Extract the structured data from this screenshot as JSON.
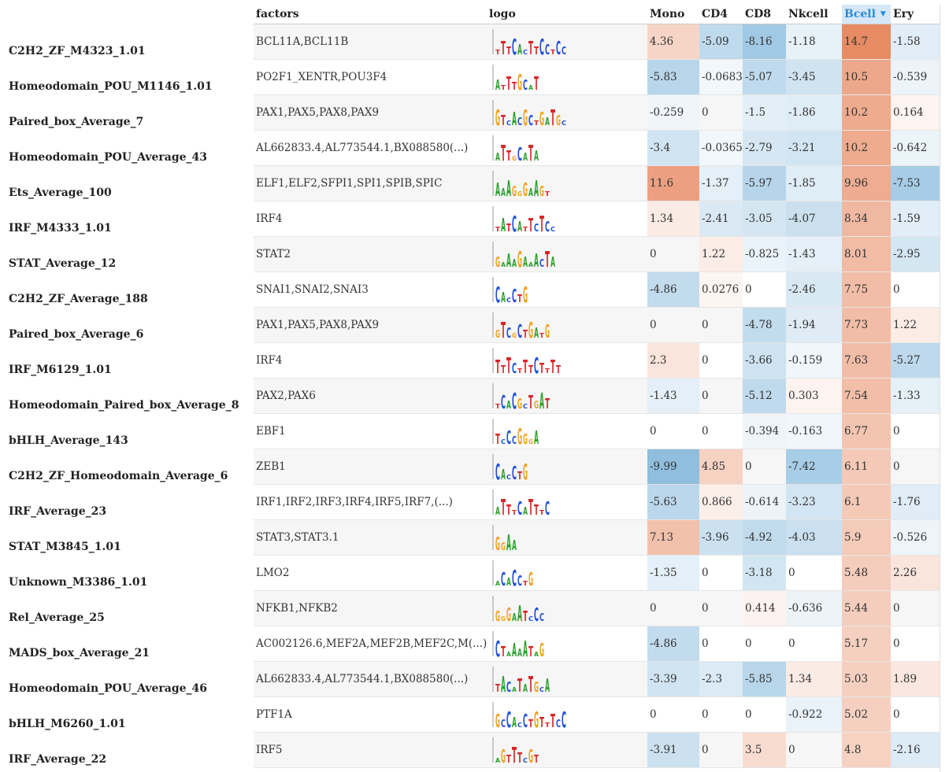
{
  "columns": {
    "factors": "factors",
    "logo": "logo",
    "mono": "Mono",
    "cd4": "CD4",
    "cd8": "CD8",
    "nkcell": "Nkcell",
    "bcell": "Bcell",
    "ery": "Ery"
  },
  "sort": {
    "column": "bcell",
    "direction": "descending",
    "indicator_icon": "sort-desc-arrow-icon"
  },
  "colors": {
    "positive": "#e6855c",
    "negative": "#5a9fcf",
    "sorted_header_bg": "#d6e8f7",
    "sorted_header_text": "#2b8cd6"
  },
  "rows": [
    {
      "name": "C2H2_ZF_M4323_1.01",
      "factors": "BCL11A,BCL11B",
      "logo": [
        "T",
        "T",
        "T",
        "C",
        "A",
        "C",
        "T",
        "T",
        "C",
        "C",
        "T",
        "C",
        "C"
      ],
      "values": [
        "4.36",
        "-5.09",
        "-8.16",
        "-1.18",
        "14.7",
        "-1.58"
      ]
    },
    {
      "name": "Homeodomain_POU_M1146_1.01",
      "factors": "PO2F1_XENTR,POU3F4",
      "logo": [
        "A",
        "T",
        "T",
        "T",
        "G",
        "C",
        "A",
        "T"
      ],
      "values": [
        "-5.83",
        "-0.0683",
        "-5.07",
        "-3.45",
        "10.5",
        "-0.539"
      ]
    },
    {
      "name": "Paired_box_Average_7",
      "factors": "PAX1,PAX5,PAX8,PAX9",
      "logo": [
        "G",
        "T",
        "C",
        "A",
        "C",
        "G",
        "C",
        "T",
        "G",
        "A",
        "T",
        "G",
        "C"
      ],
      "values": [
        "-0.259",
        "0",
        "-1.5",
        "-1.86",
        "10.2",
        "0.164"
      ]
    },
    {
      "name": "Homeodomain_POU_Average_43",
      "factors": "AL662833.4,AL773544.1,BX088580(...)",
      "logo": [
        "A",
        "T",
        "T",
        "G",
        "C",
        "A",
        "T",
        "A"
      ],
      "values": [
        "-3.4",
        "-0.0365",
        "-2.79",
        "-3.21",
        "10.2",
        "-0.642"
      ]
    },
    {
      "name": "Ets_Average_100",
      "factors": "ELF1,ELF2,SFPI1,SPI1,SPIB,SPIC",
      "logo": [
        "A",
        "A",
        "A",
        "G",
        "G",
        "G",
        "A",
        "A",
        "G",
        "T"
      ],
      "values": [
        "11.6",
        "-1.37",
        "-5.97",
        "-1.85",
        "9.96",
        "-7.53"
      ]
    },
    {
      "name": "IRF_M4333_1.01",
      "factors": "IRF4",
      "logo": [
        "T",
        "A",
        "T",
        "C",
        "A",
        "T",
        "T",
        "C",
        "T",
        "C",
        "C"
      ],
      "values": [
        "1.34",
        "-2.41",
        "-3.05",
        "-4.07",
        "8.34",
        "-1.59"
      ]
    },
    {
      "name": "STAT_Average_12",
      "factors": "STAT2",
      "logo": [
        "G",
        "A",
        "A",
        "A",
        "G",
        "A",
        "A",
        "A",
        "C",
        "T",
        "A"
      ],
      "values": [
        "0",
        "1.22",
        "-0.825",
        "-1.43",
        "8.01",
        "-2.95"
      ]
    },
    {
      "name": "C2H2_ZF_Average_188",
      "factors": "SNAI1,SNAI2,SNAI3",
      "logo": [
        "C",
        "A",
        "C",
        "C",
        "T",
        "G"
      ],
      "values": [
        "-4.86",
        "0.0276",
        "0",
        "-2.46",
        "7.75",
        "0"
      ]
    },
    {
      "name": "Paired_box_Average_6",
      "factors": "PAX1,PAX5,PAX8,PAX9",
      "logo": [
        "G",
        "T",
        "C",
        "G",
        "C",
        "T",
        "G",
        "A",
        "T",
        "G"
      ],
      "values": [
        "0",
        "0",
        "-4.78",
        "-1.94",
        "7.73",
        "1.22"
      ]
    },
    {
      "name": "IRF_M6129_1.01",
      "factors": "IRF4",
      "logo": [
        "T",
        "T",
        "T",
        "C",
        "T",
        "T",
        "T",
        "C",
        "T",
        "T",
        "T",
        "T"
      ],
      "values": [
        "2.3",
        "0",
        "-3.66",
        "-0.159",
        "7.63",
        "-5.27"
      ]
    },
    {
      "name": "Homeodomain_Paired_box_Average_8",
      "factors": "PAX2,PAX6",
      "logo": [
        "T",
        "C",
        "A",
        "C",
        "G",
        "C",
        "T",
        "G",
        "A",
        "T"
      ],
      "values": [
        "-1.43",
        "0",
        "-5.12",
        "0.303",
        "7.54",
        "-1.33"
      ]
    },
    {
      "name": "bHLH_Average_143",
      "factors": "EBF1",
      "logo": [
        "T",
        "C",
        "C",
        "C",
        "G",
        "G",
        "G",
        "A"
      ],
      "values": [
        "0",
        "0",
        "-0.394",
        "-0.163",
        "6.77",
        "0"
      ]
    },
    {
      "name": "C2H2_ZF_Homeodomain_Average_6",
      "factors": "ZEB1",
      "logo": [
        "C",
        "A",
        "C",
        "C",
        "T",
        "G"
      ],
      "values": [
        "-9.99",
        "4.85",
        "0",
        "-7.42",
        "6.11",
        "0"
      ]
    },
    {
      "name": "IRF_Average_23",
      "factors": "IRF1,IRF2,IRF3,IRF4,IRF5,IRF7,(...)",
      "logo": [
        "A",
        "T",
        "T",
        "T",
        "C",
        "A",
        "T",
        "T",
        "T",
        "C"
      ],
      "values": [
        "-5.63",
        "0.866",
        "-0.614",
        "-3.23",
        "6.1",
        "-1.76"
      ]
    },
    {
      "name": "STAT_M3845_1.01",
      "factors": "STAT3,STAT3.1",
      "logo": [
        "G",
        "G",
        "A",
        "A"
      ],
      "values": [
        "7.13",
        "-3.96",
        "-4.92",
        "-4.03",
        "5.9",
        "-0.526"
      ]
    },
    {
      "name": "Unknown_M3386_1.01",
      "factors": "LMO2",
      "logo": [
        "A",
        "C",
        "A",
        "C",
        "C",
        "T",
        "G"
      ],
      "values": [
        "-1.35",
        "0",
        "-3.18",
        "0",
        "5.48",
        "2.26"
      ]
    },
    {
      "name": "Rel_Average_25",
      "factors": "NFKB1,NFKB2",
      "logo": [
        "G",
        "G",
        "G",
        "A",
        "A",
        "T",
        "C",
        "C",
        "C"
      ],
      "values": [
        "0",
        "0",
        "0.414",
        "-0.636",
        "5.44",
        "0"
      ]
    },
    {
      "name": "MADS_box_Average_21",
      "factors": "AC002126.6,MEF2A,MEF2B,MEF2C,M(...)",
      "logo": [
        "C",
        "T",
        "A",
        "A",
        "A",
        "A",
        "T",
        "A",
        "G"
      ],
      "values": [
        "-4.86",
        "0",
        "0",
        "0",
        "5.17",
        "0"
      ]
    },
    {
      "name": "Homeodomain_POU_Average_46",
      "factors": "AL662833.4,AL773544.1,BX088580(...)",
      "logo": [
        "T",
        "A",
        "C",
        "A",
        "T",
        "A",
        "T",
        "G",
        "C",
        "A"
      ],
      "values": [
        "-3.39",
        "-2.3",
        "-5.85",
        "1.34",
        "5.03",
        "1.89"
      ]
    },
    {
      "name": "bHLH_M6260_1.01",
      "factors": "PTF1A",
      "logo": [
        "G",
        "C",
        "C",
        "A",
        "C",
        "C",
        "T",
        "G",
        "T",
        "T",
        "T",
        "C",
        "C"
      ],
      "values": [
        "0",
        "0",
        "0",
        "-0.922",
        "5.02",
        "0"
      ]
    },
    {
      "name": "IRF_Average_22",
      "factors": "IRF5",
      "logo": [
        "A",
        "G",
        "T",
        "T",
        "T",
        "C",
        "G",
        "T"
      ],
      "values": [
        "-3.91",
        "0",
        "3.5",
        "0",
        "4.8",
        "-2.16"
      ]
    }
  ]
}
